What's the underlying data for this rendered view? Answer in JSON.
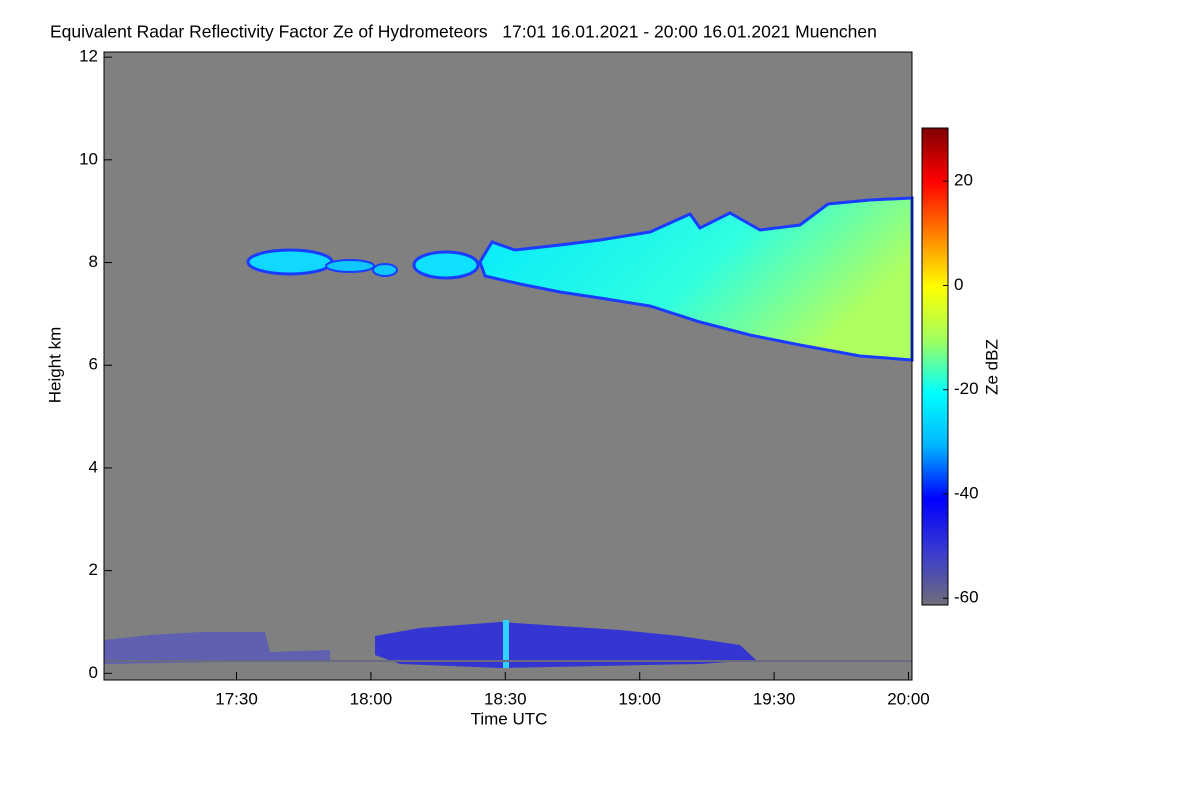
{
  "chart_data": {
    "type": "heatmap",
    "title": "Equivalent Radar Reflectivity Factor Ze of Hydrometeors   17:01 16.01.2021 - 20:00 16.01.2021 Muenchen",
    "x_label": "Time UTC",
    "y_label": "Height km",
    "colorbar_label": "Ze dBZ",
    "xlim": [
      17.007,
      20.013
    ],
    "xticks": [
      {
        "value": 17.5,
        "label": "17:30"
      },
      {
        "value": 18,
        "label": "18:00"
      },
      {
        "value": 18.5,
        "label": "18:30"
      },
      {
        "value": 19,
        "label": "19:00"
      },
      {
        "value": 19.5,
        "label": "19:30"
      },
      {
        "value": 20,
        "label": "20:00"
      }
    ],
    "ylim": [
      -0.13,
      12.1
    ],
    "yticks": [
      0,
      2,
      4,
      6,
      8,
      10,
      12
    ],
    "zlim": [
      -61.3,
      30.2
    ],
    "zticks": [
      -60,
      -40,
      -20,
      0,
      20
    ],
    "colormap": [
      "#6e6e78",
      "#3a3ad0",
      "#0000ff",
      "#00b4ff",
      "#00ffff",
      "#a0ff60",
      "#ffff00",
      "#ff8000",
      "#ff0000",
      "#800000"
    ],
    "background": "#808080"
  }
}
